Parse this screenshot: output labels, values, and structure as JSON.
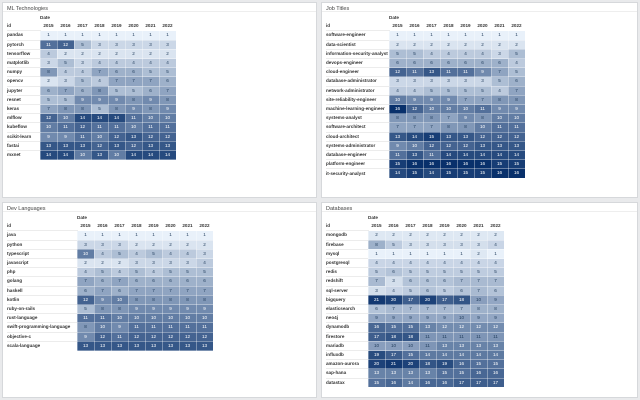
{
  "colors": {
    "low": "#e9f1fa",
    "high": "#08306b"
  },
  "chart_data": [
    {
      "type": "heatmap",
      "title": "ML Technologies",
      "col_caption": "Date",
      "row_header": "id",
      "years": [
        "2015",
        "2016",
        "2017",
        "2018",
        "2019",
        "2020",
        "2021",
        "2022"
      ],
      "vmin": 1,
      "vmax": 16,
      "rows": [
        {
          "id": "pandas",
          "values": [
            1,
            1,
            1,
            1,
            1,
            1,
            1,
            1
          ]
        },
        {
          "id": "pytorch",
          "values": [
            11,
            12,
            5,
            3,
            3,
            3,
            3,
            3
          ]
        },
        {
          "id": "tensorflow",
          "values": [
            4,
            2,
            2,
            2,
            2,
            2,
            2,
            2
          ]
        },
        {
          "id": "matplotlib",
          "values": [
            3,
            5,
            3,
            4,
            4,
            4,
            4,
            4
          ]
        },
        {
          "id": "numpy",
          "values": [
            8,
            4,
            4,
            7,
            6,
            6,
            5,
            5
          ]
        },
        {
          "id": "opencv",
          "values": [
            2,
            3,
            5,
            4,
            7,
            7,
            7,
            6
          ]
        },
        {
          "id": "jupyter",
          "values": [
            6,
            7,
            6,
            8,
            5,
            5,
            6,
            7
          ]
        },
        {
          "id": "resnet",
          "values": [
            5,
            5,
            9,
            9,
            9,
            8,
            9,
            8
          ]
        },
        {
          "id": "keras",
          "values": [
            7,
            8,
            8,
            5,
            8,
            9,
            8,
            9
          ]
        },
        {
          "id": "mlflow",
          "values": [
            12,
            10,
            14,
            14,
            14,
            11,
            10,
            10
          ]
        },
        {
          "id": "kubeflow",
          "values": [
            10,
            11,
            12,
            11,
            11,
            10,
            11,
            11
          ]
        },
        {
          "id": "scikit-learn",
          "values": [
            9,
            9,
            11,
            10,
            12,
            13,
            12,
            12
          ]
        },
        {
          "id": "fastai",
          "values": [
            13,
            13,
            13,
            12,
            13,
            12,
            13,
            13
          ]
        },
        {
          "id": "mxnet",
          "values": [
            14,
            14,
            10,
            13,
            10,
            14,
            14,
            14
          ]
        }
      ]
    },
    {
      "type": "heatmap",
      "title": "Job Titles",
      "col_caption": "Date",
      "row_header": "id",
      "years": [
        "2015",
        "2016",
        "2017",
        "2018",
        "2019",
        "2020",
        "2021",
        "2022"
      ],
      "vmin": 1,
      "vmax": 16,
      "rows": [
        {
          "id": "software-engineer",
          "values": [
            1,
            1,
            1,
            1,
            1,
            1,
            1,
            1
          ]
        },
        {
          "id": "data-scientist",
          "values": [
            2,
            2,
            2,
            2,
            2,
            2,
            2,
            2
          ]
        },
        {
          "id": "information-security-analyst",
          "values": [
            5,
            5,
            4,
            4,
            4,
            4,
            3,
            5
          ]
        },
        {
          "id": "devops-engineer",
          "values": [
            6,
            6,
            6,
            6,
            6,
            6,
            6,
            4
          ]
        },
        {
          "id": "cloud-engineer",
          "values": [
            12,
            11,
            13,
            11,
            11,
            9,
            7,
            5
          ]
        },
        {
          "id": "database-administrator",
          "values": [
            3,
            3,
            3,
            3,
            3,
            3,
            5,
            6
          ]
        },
        {
          "id": "network-administrator",
          "values": [
            4,
            4,
            5,
            5,
            5,
            5,
            4,
            7
          ]
        },
        {
          "id": "site-reliability-engineer",
          "values": [
            10,
            9,
            9,
            9,
            7,
            7,
            8,
            8
          ]
        },
        {
          "id": "machine-learning-engineer",
          "values": [
            16,
            12,
            10,
            10,
            10,
            11,
            9,
            9
          ]
        },
        {
          "id": "systems-analyst",
          "values": [
            8,
            8,
            8,
            7,
            9,
            8,
            10,
            10
          ]
        },
        {
          "id": "software-architect",
          "values": [
            7,
            7,
            7,
            8,
            8,
            10,
            11,
            11
          ]
        },
        {
          "id": "cloud-architect",
          "values": [
            13,
            14,
            15,
            13,
            13,
            12,
            12,
            12
          ]
        },
        {
          "id": "systems-administrator",
          "values": [
            9,
            10,
            12,
            12,
            12,
            13,
            13,
            13
          ]
        },
        {
          "id": "database-engineer",
          "values": [
            11,
            13,
            11,
            14,
            14,
            14,
            14,
            14
          ]
        },
        {
          "id": "platform-engineer",
          "values": [
            15,
            16,
            16,
            16,
            16,
            16,
            15,
            15
          ]
        },
        {
          "id": "it-security-analyst",
          "values": [
            14,
            15,
            14,
            15,
            15,
            15,
            16,
            16
          ]
        }
      ]
    },
    {
      "type": "heatmap",
      "title": "Dev Languages",
      "col_caption": "Date",
      "row_header": "id",
      "years": [
        "2015",
        "2016",
        "2017",
        "2018",
        "2019",
        "2020",
        "2021",
        "2022"
      ],
      "vmin": 1,
      "vmax": 16,
      "rows": [
        {
          "id": "java",
          "values": [
            1,
            1,
            1,
            1,
            1,
            1,
            1,
            1
          ]
        },
        {
          "id": "python",
          "values": [
            3,
            3,
            3,
            2,
            2,
            2,
            2,
            2
          ]
        },
        {
          "id": "typescript",
          "values": [
            10,
            4,
            5,
            4,
            5,
            4,
            4,
            3
          ]
        },
        {
          "id": "javascript",
          "values": [
            2,
            2,
            2,
            3,
            3,
            3,
            3,
            4
          ]
        },
        {
          "id": "php",
          "values": [
            4,
            5,
            4,
            5,
            4,
            5,
            5,
            5
          ]
        },
        {
          "id": "golang",
          "values": [
            7,
            6,
            7,
            6,
            6,
            6,
            6,
            6
          ]
        },
        {
          "id": "haskell",
          "values": [
            6,
            7,
            6,
            7,
            7,
            7,
            7,
            7
          ]
        },
        {
          "id": "kotlin",
          "values": [
            12,
            9,
            10,
            8,
            8,
            8,
            8,
            8
          ]
        },
        {
          "id": "ruby-on-rails",
          "values": [
            5,
            8,
            8,
            9,
            9,
            9,
            9,
            9
          ]
        },
        {
          "id": "rust-language",
          "values": [
            11,
            11,
            10,
            10,
            10,
            10,
            10,
            10
          ]
        },
        {
          "id": "swift-programming-language",
          "values": [
            8,
            10,
            9,
            11,
            11,
            11,
            11,
            11
          ]
        },
        {
          "id": "objective-c",
          "values": [
            9,
            12,
            11,
            12,
            12,
            12,
            12,
            12
          ]
        },
        {
          "id": "scala-language",
          "values": [
            13,
            13,
            13,
            13,
            13,
            13,
            13,
            13
          ]
        }
      ]
    },
    {
      "type": "heatmap",
      "title": "Databases",
      "col_caption": "Date",
      "row_header": "id",
      "years": [
        "2015",
        "2016",
        "2017",
        "2018",
        "2019",
        "2020",
        "2021",
        "2022"
      ],
      "vmin": 1,
      "vmax": 22,
      "rows": [
        {
          "id": "mongodb",
          "values": [
            2,
            2,
            2,
            2,
            2,
            2,
            2,
            2
          ]
        },
        {
          "id": "firebase",
          "values": [
            8,
            5,
            3,
            3,
            3,
            3,
            3,
            4
          ]
        },
        {
          "id": "mysql",
          "values": [
            1,
            1,
            1,
            1,
            1,
            1,
            2,
            1
          ]
        },
        {
          "id": "postgresql",
          "values": [
            4,
            4,
            4,
            4,
            4,
            4,
            4,
            4
          ]
        },
        {
          "id": "redis",
          "values": [
            5,
            6,
            5,
            5,
            5,
            5,
            5,
            5
          ]
        },
        {
          "id": "redshift",
          "values": [
            7,
            3,
            6,
            6,
            6,
            7,
            7,
            7
          ]
        },
        {
          "id": "sql-server",
          "values": [
            3,
            4,
            5,
            6,
            5,
            6,
            7,
            6
          ]
        },
        {
          "id": "bigquery",
          "values": [
            21,
            20,
            17,
            20,
            17,
            18,
            10,
            9
          ]
        },
        {
          "id": "elasticsearch",
          "values": [
            6,
            7,
            7,
            7,
            7,
            7,
            8,
            8
          ]
        },
        {
          "id": "neo4j",
          "values": [
            9,
            9,
            9,
            9,
            9,
            10,
            9,
            9
          ]
        },
        {
          "id": "dynamodb",
          "values": [
            16,
            15,
            15,
            13,
            12,
            12,
            12,
            12
          ]
        },
        {
          "id": "firestore",
          "values": [
            17,
            18,
            18,
            11,
            11,
            11,
            11,
            11
          ]
        },
        {
          "id": "mariadb",
          "values": [
            10,
            10,
            10,
            11,
            13,
            13,
            13,
            13
          ]
        },
        {
          "id": "influxdb",
          "values": [
            19,
            17,
            15,
            14,
            14,
            14,
            14,
            14
          ]
        },
        {
          "id": "amazon-aurora",
          "values": [
            20,
            21,
            20,
            18,
            19,
            16,
            15,
            15
          ]
        },
        {
          "id": "sap-hana",
          "values": [
            13,
            13,
            13,
            13,
            15,
            15,
            16,
            16
          ]
        },
        {
          "id": "datastax",
          "values": [
            15,
            16,
            14,
            16,
            16,
            17,
            17,
            17
          ]
        }
      ]
    }
  ]
}
